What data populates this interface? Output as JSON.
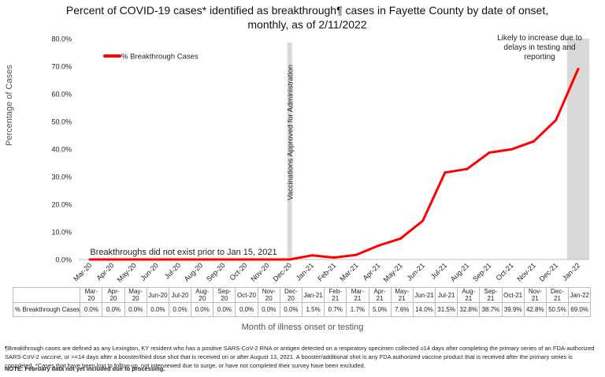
{
  "title": "Percent of COVID-19 cases* identified as breakthrough¶ cases in Fayette County by date of onset, monthly, as of 2/11/2022",
  "chart_data": {
    "type": "line",
    "categories": [
      "Mar-20",
      "Apr-20",
      "May-20",
      "Jun-20",
      "Jul-20",
      "Aug-20",
      "Sep-20",
      "Oct-20",
      "Nov-20",
      "Dec-20",
      "Jan-21",
      "Feb-21",
      "Mar-21",
      "Apr-21",
      "May-21",
      "Jun-21",
      "Jul-21",
      "Aug-21",
      "Sep-21",
      "Oct-21",
      "Nov-21",
      "Dec-21",
      "Jan-22"
    ],
    "series": [
      {
        "name": "% Breakthrough Cases",
        "color": "#ff0000",
        "values": [
          0.0,
          0.0,
          0.0,
          0.0,
          0.0,
          0.0,
          0.0,
          0.0,
          0.0,
          0.0,
          1.5,
          0.7,
          1.7,
          5.0,
          7.6,
          14.0,
          31.5,
          32.8,
          38.7,
          39.9,
          42.8,
          50.5,
          69.0
        ]
      }
    ],
    "value_labels": [
      "0.0%",
      "0.0%",
      "0.0%",
      "0.0%",
      "0.0%",
      "0.0%",
      "0.0%",
      "0.0%",
      "0.0%",
      "0.0%",
      "1.5%",
      "0.7%",
      "1.7%",
      "5.0%",
      "7.6%",
      "14.0%",
      "31.5%",
      "32.8%",
      "38.7%",
      "39.9%",
      "42.8%",
      "50.5%",
      "69.0%"
    ],
    "table_categories": [
      "Mar-\n20",
      "Apr-\n20",
      "May-\n20",
      "Jun-20",
      "Jul-20",
      "Aug-\n20",
      "Sep-\n20",
      "Oct-20",
      "Nov-\n20",
      "Dec-\n20",
      "Jan-21",
      "Feb-\n21",
      "Mar-\n21",
      "Apr-\n21",
      "May-\n21",
      "Jun-21",
      "Jul-21",
      "Aug-\n21",
      "Sep-\n21",
      "Oct-21",
      "Nov-\n21",
      "Dec-\n21",
      "Jan-22"
    ],
    "y_ticks": [
      "0.0%",
      "10.0%",
      "20.0%",
      "30.0%",
      "40.0%",
      "50.0%",
      "60.0%",
      "70.0%",
      "80.0%"
    ],
    "ylim": [
      0,
      80
    ],
    "xlabel": "Month of illness onset or testing",
    "ylabel": "Percentage of Cases",
    "legend": "top-left",
    "grid": false,
    "annotations": {
      "vaccination": "Vaccinations Approved for Administration",
      "no_breakthrough": "Breakthroughs did not exist prior to Jan 15, 2021",
      "increase": [
        "Likely to increase due to",
        "delays in testing and",
        "reporting"
      ]
    },
    "shade_color": "#d9d9d9"
  },
  "table_row_label": "% Breakthrough Cases",
  "footnote": "¶Breakthrough cases are defined as any Lexington, KY resident who has a positive SARS-CoV-2 RNA or antigen detected on a respiratory specimen collected ≥14 days after completing the primary series of an FDA-authorized SARS-CoV-2 vaccine, or >=14 days after a booster/third dose shot that is received on or after August 13, 2021.  A booster/additional shot is any FDA authorized vaccine product that is received after the primary series is completed. *Cases that have been lost to follow-up, not interviewed due to surge, or have not completed their survey have been excluded.",
  "note": "NOTE: February data not yet included due to processing."
}
